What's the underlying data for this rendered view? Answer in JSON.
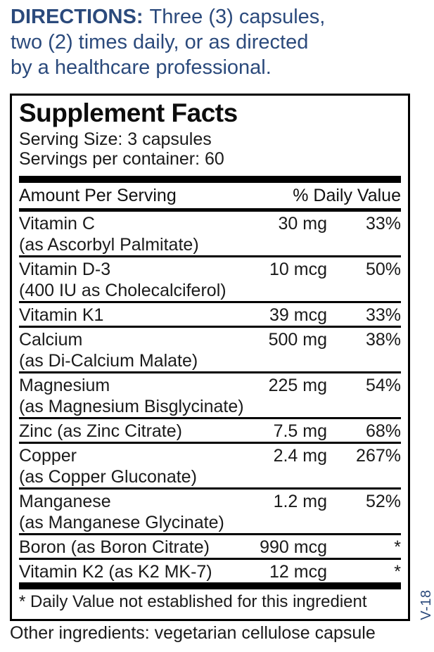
{
  "directions": {
    "label": "DIRECTIONS:",
    "line1": "Three (3) capsules,",
    "line2": "two (2) times daily, or as directed",
    "line3": "by a healthcare professional."
  },
  "panel": {
    "title": "Supplement Facts",
    "serving_size": "Serving Size: 3 capsules",
    "servings_per_container": "Servings per container: 60",
    "header": {
      "amount_label": "Amount Per Serving",
      "daily_value_label": "% Daily Value"
    },
    "rows": [
      {
        "name": "Vitamin C",
        "detail": "(as Ascorbyl Palmitate)",
        "amount": "30 mg",
        "dv": "33%"
      },
      {
        "name": "Vitamin D-3",
        "detail": "(400 IU as Cholecalciferol)",
        "amount": "10 mcg",
        "dv": "50%"
      },
      {
        "name": "Vitamin K1",
        "amount": "39 mcg",
        "dv": "33%"
      },
      {
        "name": "Calcium",
        "detail": "(as Di-Calcium Malate)",
        "amount": "500 mg",
        "dv": "38%"
      },
      {
        "name": "Magnesium",
        "detail": "(as Magnesium Bisglycinate)",
        "amount": "225 mg",
        "dv": "54%"
      },
      {
        "name": "Zinc (as Zinc Citrate)",
        "amount": "7.5 mg",
        "dv": "68%"
      },
      {
        "name": "Copper",
        "detail": "(as Copper Gluconate)",
        "amount": "2.4 mg",
        "dv": "267%"
      },
      {
        "name": "Manganese",
        "detail": "(as Manganese Glycinate)",
        "amount": "1.2 mg",
        "dv": "52%"
      },
      {
        "name": "Boron (as Boron Citrate)",
        "amount": "990 mcg",
        "dv": "*"
      },
      {
        "name": "Vitamin K2 (as K2 MK-7)",
        "amount": "12 mcg",
        "dv": "*"
      }
    ],
    "footnote": "* Daily Value not established for this ingredient"
  },
  "version_tag": "V-18",
  "other_ingredients": "Other ingredients: vegetarian cellulose capsule",
  "colors": {
    "accent_blue": "#2b4a7c",
    "text_black": "#111111",
    "rule_black": "#000000"
  }
}
